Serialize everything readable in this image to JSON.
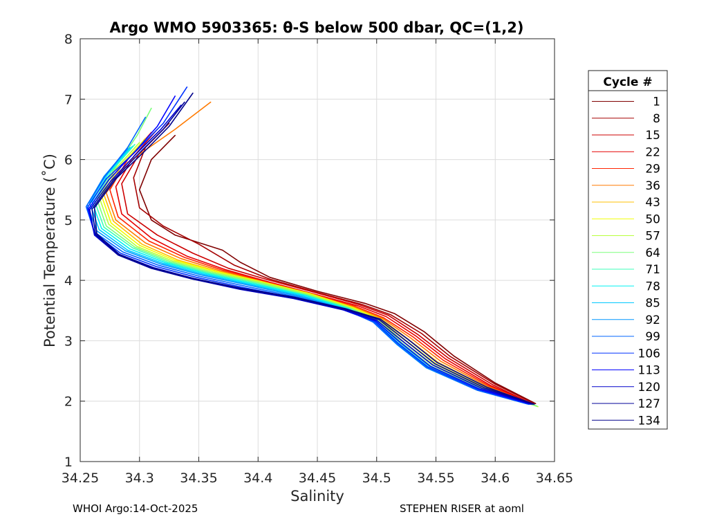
{
  "chart_data": {
    "type": "line",
    "title": "Argo WMO 5903365: θ-S below 500 dbar,  QC=(1,2)",
    "xlabel": "Salinity",
    "ylabel": "Potential Temperature (˚C)",
    "xlim": [
      34.25,
      34.65
    ],
    "ylim": [
      1,
      8
    ],
    "xticks": [
      "34.25",
      "34.3",
      "34.35",
      "34.4",
      "34.45",
      "34.5",
      "34.55",
      "34.6",
      "34.65"
    ],
    "yticks": [
      "1",
      "2",
      "3",
      "4",
      "5",
      "6",
      "7",
      "8"
    ],
    "grid": true,
    "legend": {
      "title": "Cycle #",
      "placement": "right",
      "entries": [
        {
          "label": "1",
          "color": "#800000"
        },
        {
          "label": "8",
          "color": "#a50000"
        },
        {
          "label": "15",
          "color": "#cc0000"
        },
        {
          "label": "22",
          "color": "#e60000"
        },
        {
          "label": "29",
          "color": "#ff2400"
        },
        {
          "label": "36",
          "color": "#ff7a00"
        },
        {
          "label": "43",
          "color": "#ffc000"
        },
        {
          "label": "50",
          "color": "#f2ff00"
        },
        {
          "label": "57",
          "color": "#b8ff3c"
        },
        {
          "label": "64",
          "color": "#7aff7a"
        },
        {
          "label": "71",
          "color": "#3cffb8"
        },
        {
          "label": "78",
          "color": "#00f2f2"
        },
        {
          "label": "85",
          "color": "#00c8ff"
        },
        {
          "label": "92",
          "color": "#0096ff"
        },
        {
          "label": "99",
          "color": "#0064ff"
        },
        {
          "label": "106",
          "color": "#0032ff"
        },
        {
          "label": "113",
          "color": "#0000ff"
        },
        {
          "label": "120",
          "color": "#0000cc"
        },
        {
          "label": "127",
          "color": "#000099"
        },
        {
          "label": "134",
          "color": "#00008b"
        }
      ]
    },
    "series": [
      {
        "name": "1",
        "color": "#800000",
        "x": [
          34.634,
          34.6,
          34.565,
          34.54,
          34.515,
          34.49,
          34.45,
          34.41,
          34.385,
          34.37,
          34.33,
          34.31,
          34.3,
          34.31,
          34.33
        ],
        "y": [
          1.96,
          2.3,
          2.75,
          3.15,
          3.45,
          3.62,
          3.82,
          4.05,
          4.3,
          4.5,
          4.75,
          5.0,
          5.5,
          6.0,
          6.4
        ]
      },
      {
        "name": "8",
        "color": "#a50000",
        "x": [
          34.633,
          34.6,
          34.562,
          34.538,
          34.512,
          34.488,
          34.45,
          34.41,
          34.38,
          34.35,
          34.32,
          34.3,
          34.295,
          34.305,
          34.325
        ],
        "y": [
          1.96,
          2.28,
          2.74,
          3.12,
          3.43,
          3.6,
          3.8,
          4.02,
          4.25,
          4.6,
          4.9,
          5.2,
          5.7,
          6.2,
          6.6
        ]
      },
      {
        "name": "15",
        "color": "#cc0000",
        "x": [
          34.632,
          34.598,
          34.56,
          34.535,
          34.51,
          34.485,
          34.448,
          34.41,
          34.375,
          34.345,
          34.315,
          34.29,
          34.285,
          34.3,
          34.32
        ],
        "y": [
          1.95,
          2.27,
          2.72,
          3.1,
          3.42,
          3.6,
          3.8,
          4.0,
          4.2,
          4.45,
          4.75,
          5.1,
          5.6,
          6.1,
          6.5
        ]
      },
      {
        "name": "22",
        "color": "#e60000",
        "x": [
          34.632,
          34.596,
          34.558,
          34.533,
          34.508,
          34.484,
          34.446,
          34.408,
          34.372,
          34.34,
          34.31,
          34.285,
          34.28,
          34.295,
          34.315
        ],
        "y": [
          1.95,
          2.26,
          2.7,
          3.08,
          3.4,
          3.58,
          3.78,
          3.98,
          4.18,
          4.4,
          4.7,
          5.1,
          5.55,
          6.05,
          6.5
        ]
      },
      {
        "name": "29",
        "color": "#ff2400",
        "x": [
          34.631,
          34.595,
          34.556,
          34.531,
          34.506,
          34.482,
          34.445,
          34.406,
          34.37,
          34.338,
          34.308,
          34.282,
          34.275,
          34.29,
          34.31
        ],
        "y": [
          1.95,
          2.25,
          2.68,
          3.06,
          3.38,
          3.57,
          3.78,
          3.98,
          4.17,
          4.38,
          4.65,
          5.05,
          5.5,
          6.0,
          6.45
        ]
      },
      {
        "name": "36",
        "color": "#ff7a00",
        "x": [
          34.631,
          34.594,
          34.554,
          34.529,
          34.505,
          34.481,
          34.444,
          34.405,
          34.368,
          34.335,
          34.305,
          34.28,
          34.272,
          34.29,
          34.33,
          34.36
        ],
        "y": [
          1.95,
          2.24,
          2.66,
          3.04,
          3.37,
          3.56,
          3.77,
          3.97,
          4.16,
          4.36,
          4.62,
          5.0,
          5.45,
          5.95,
          6.5,
          6.95
        ]
      },
      {
        "name": "43",
        "color": "#ffc000",
        "x": [
          34.63,
          34.593,
          34.552,
          34.527,
          34.504,
          34.48,
          34.444,
          34.404,
          34.366,
          34.332,
          34.302,
          34.278,
          34.27,
          34.285,
          34.305
        ],
        "y": [
          1.95,
          2.23,
          2.64,
          3.02,
          3.36,
          3.55,
          3.77,
          3.97,
          4.15,
          4.34,
          4.6,
          4.98,
          5.42,
          5.9,
          6.35
        ]
      },
      {
        "name": "50",
        "color": "#f2ff00",
        "x": [
          34.63,
          34.592,
          34.55,
          34.525,
          34.503,
          34.48,
          34.444,
          34.403,
          34.364,
          34.33,
          34.3,
          34.276,
          34.268,
          34.283,
          34.303
        ],
        "y": [
          1.95,
          2.22,
          2.62,
          3.0,
          3.35,
          3.55,
          3.78,
          3.98,
          4.15,
          4.33,
          4.58,
          4.95,
          5.4,
          5.88,
          6.3
        ]
      },
      {
        "name": "57",
        "color": "#b8ff3c",
        "x": [
          34.636,
          34.59,
          34.548,
          34.523,
          34.502,
          34.479,
          34.443,
          34.402,
          34.362,
          34.328,
          34.298,
          34.274,
          34.266,
          34.28,
          34.3
        ],
        "y": [
          1.91,
          2.21,
          2.6,
          2.98,
          3.34,
          3.54,
          3.77,
          3.97,
          4.14,
          4.32,
          4.56,
          4.93,
          5.38,
          5.85,
          6.28
        ]
      },
      {
        "name": "64",
        "color": "#7aff7a",
        "x": [
          34.635,
          34.589,
          34.546,
          34.521,
          34.501,
          34.478,
          34.442,
          34.4,
          34.36,
          34.326,
          34.296,
          34.272,
          34.264,
          34.278,
          34.298,
          34.31
        ],
        "y": [
          1.92,
          2.2,
          2.58,
          2.97,
          3.33,
          3.54,
          3.76,
          3.96,
          4.13,
          4.31,
          4.55,
          4.9,
          5.35,
          5.82,
          6.4,
          6.85
        ]
      },
      {
        "name": "71",
        "color": "#3cffb8",
        "x": [
          34.629,
          34.588,
          34.545,
          34.52,
          34.5,
          34.477,
          34.441,
          34.398,
          34.358,
          34.324,
          34.294,
          34.27,
          34.262,
          34.276,
          34.296
        ],
        "y": [
          1.95,
          2.19,
          2.57,
          2.96,
          3.32,
          3.53,
          3.75,
          3.95,
          4.12,
          4.3,
          4.54,
          4.88,
          5.32,
          5.8,
          6.25
        ]
      },
      {
        "name": "78",
        "color": "#00f2f2",
        "x": [
          34.629,
          34.587,
          34.544,
          34.519,
          34.499,
          34.476,
          34.44,
          34.396,
          34.356,
          34.322,
          34.292,
          34.268,
          34.26,
          34.274,
          34.294
        ],
        "y": [
          1.95,
          2.19,
          2.56,
          2.95,
          3.32,
          3.53,
          3.75,
          3.94,
          4.11,
          4.29,
          4.52,
          4.86,
          5.3,
          5.78,
          6.22
        ]
      },
      {
        "name": "85",
        "color": "#00c8ff",
        "x": [
          34.628,
          34.586,
          34.543,
          34.518,
          34.498,
          34.475,
          34.438,
          34.394,
          34.354,
          34.32,
          34.29,
          34.266,
          34.258,
          34.272,
          34.292
        ],
        "y": [
          1.95,
          2.18,
          2.55,
          2.94,
          3.31,
          3.52,
          3.74,
          3.93,
          4.1,
          4.28,
          4.5,
          4.84,
          5.28,
          5.75,
          6.2
        ]
      },
      {
        "name": "92",
        "color": "#0096ff",
        "x": [
          34.628,
          34.585,
          34.542,
          34.517,
          34.497,
          34.474,
          34.436,
          34.392,
          34.352,
          34.318,
          34.288,
          34.264,
          34.256,
          34.27,
          34.29
        ],
        "y": [
          1.95,
          2.18,
          2.55,
          2.94,
          3.31,
          3.52,
          3.73,
          3.92,
          4.09,
          4.27,
          4.49,
          4.82,
          5.25,
          5.72,
          6.18
        ]
      },
      {
        "name": "99",
        "color": "#0064ff",
        "x": [
          34.628,
          34.585,
          34.542,
          34.517,
          34.497,
          34.473,
          34.434,
          34.39,
          34.35,
          34.316,
          34.286,
          34.262,
          34.255,
          34.27,
          34.29,
          34.305
        ],
        "y": [
          1.95,
          2.18,
          2.56,
          2.95,
          3.31,
          3.52,
          3.72,
          3.9,
          4.07,
          4.25,
          4.47,
          4.8,
          5.22,
          5.7,
          6.2,
          6.7
        ]
      },
      {
        "name": "106",
        "color": "#0032ff",
        "x": [
          34.629,
          34.586,
          34.543,
          34.518,
          34.498,
          34.472,
          34.432,
          34.388,
          34.348,
          34.314,
          34.284,
          34.262,
          34.256,
          34.272,
          34.295,
          34.32,
          34.34
        ],
        "y": [
          1.95,
          2.19,
          2.57,
          2.96,
          3.32,
          3.51,
          3.71,
          3.88,
          4.05,
          4.23,
          4.45,
          4.78,
          5.2,
          5.68,
          6.1,
          6.6,
          7.2
        ]
      },
      {
        "name": "113",
        "color": "#0000ff",
        "x": [
          34.63,
          34.587,
          34.545,
          34.52,
          34.499,
          34.472,
          34.43,
          34.386,
          34.346,
          34.312,
          34.283,
          34.262,
          34.257,
          34.274,
          34.297,
          34.315,
          34.33
        ],
        "y": [
          1.95,
          2.2,
          2.58,
          2.97,
          3.33,
          3.51,
          3.7,
          3.86,
          4.03,
          4.21,
          4.43,
          4.76,
          5.18,
          5.66,
          6.15,
          6.55,
          7.05
        ]
      },
      {
        "name": "120",
        "color": "#0000cc",
        "x": [
          34.631,
          34.589,
          34.547,
          34.522,
          34.5,
          34.472,
          34.43,
          34.385,
          34.345,
          34.31,
          34.282,
          34.262,
          34.258,
          34.276,
          34.3,
          34.318,
          34.335
        ],
        "y": [
          1.95,
          2.21,
          2.6,
          2.99,
          3.34,
          3.51,
          3.7,
          3.85,
          4.02,
          4.2,
          4.42,
          4.75,
          5.17,
          5.65,
          6.15,
          6.5,
          6.9
        ]
      },
      {
        "name": "127",
        "color": "#000099",
        "x": [
          34.632,
          34.591,
          34.549,
          34.524,
          34.502,
          34.473,
          34.43,
          34.385,
          34.345,
          34.31,
          34.282,
          34.263,
          34.26,
          34.278,
          34.302,
          34.32,
          34.338
        ],
        "y": [
          1.95,
          2.22,
          2.62,
          3.01,
          3.35,
          3.52,
          3.71,
          3.86,
          4.02,
          4.2,
          4.42,
          4.76,
          5.18,
          5.66,
          6.15,
          6.5,
          6.95
        ]
      },
      {
        "name": "134",
        "color": "#00008b",
        "x": [
          34.633,
          34.593,
          34.551,
          34.526,
          34.503,
          34.474,
          34.431,
          34.386,
          34.346,
          34.311,
          34.283,
          34.264,
          34.262,
          34.28,
          34.305,
          34.325,
          34.345
        ],
        "y": [
          1.95,
          2.23,
          2.64,
          3.03,
          3.36,
          3.53,
          3.72,
          3.87,
          4.03,
          4.21,
          4.43,
          4.77,
          5.2,
          5.68,
          6.15,
          6.55,
          7.1
        ]
      }
    ]
  },
  "footer": {
    "left": "WHOI Argo:14-Oct-2025",
    "right": "STEPHEN RISER at aoml"
  }
}
